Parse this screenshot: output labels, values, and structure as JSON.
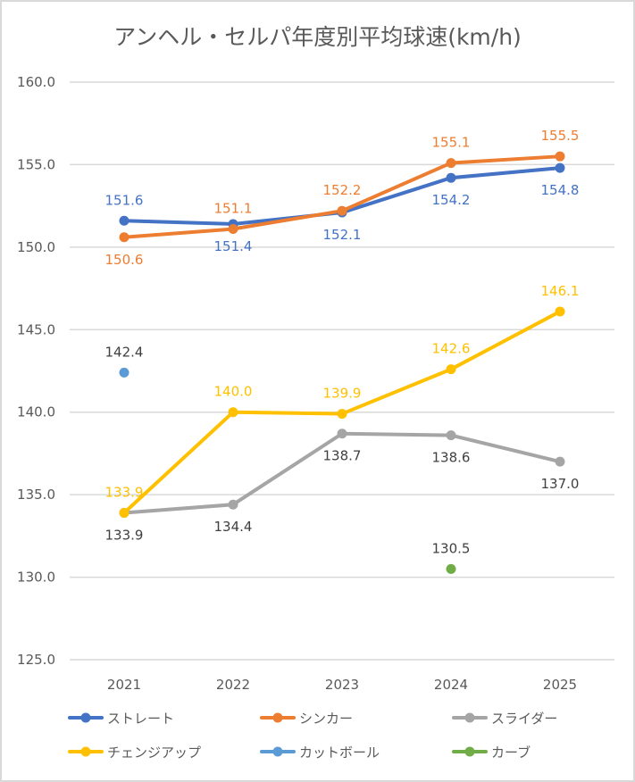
{
  "chart_data": {
    "type": "line",
    "title": "アンヘル・セルパ年度別平均球速(km/h)",
    "xlabel": "",
    "ylabel": "",
    "categories": [
      "2021",
      "2022",
      "2023",
      "2024",
      "2025"
    ],
    "ylim": [
      125.0,
      160.0
    ],
    "yticks": [
      "125.0",
      "130.0",
      "135.0",
      "140.0",
      "145.0",
      "150.0",
      "155.0",
      "160.0"
    ],
    "grid": true,
    "legend_position": "bottom",
    "series": [
      {
        "name": "ストレート",
        "color": "#4472c4",
        "values": [
          151.6,
          151.4,
          152.1,
          154.2,
          154.8
        ],
        "labels": [
          "151.6",
          "151.4",
          "152.1",
          "154.2",
          "154.8"
        ],
        "label_pos": [
          "above",
          "below",
          "below",
          "below",
          "below"
        ]
      },
      {
        "name": "シンカー",
        "color": "#ed7d31",
        "values": [
          150.6,
          151.1,
          152.2,
          155.1,
          155.5
        ],
        "labels": [
          "150.6",
          "151.1",
          "152.2",
          "155.1",
          "155.5"
        ],
        "label_pos": [
          "below",
          "above",
          "above",
          "above",
          "above"
        ]
      },
      {
        "name": "スライダー",
        "color": "#a5a5a5",
        "label_color": "#404040",
        "values": [
          133.9,
          134.4,
          138.7,
          138.6,
          137.0
        ],
        "labels": [
          "133.9",
          "134.4",
          "138.7",
          "138.6",
          "137.0"
        ],
        "label_pos": [
          "below",
          "below",
          "below",
          "below",
          "below"
        ]
      },
      {
        "name": "チェンジアップ",
        "color": "#ffc000",
        "values": [
          133.9,
          140.0,
          139.9,
          142.6,
          146.1
        ],
        "labels": [
          "133.9",
          "140.0",
          "139.9",
          "142.6",
          "146.1"
        ],
        "label_pos": [
          "above",
          "above",
          "above",
          "above",
          "above"
        ]
      },
      {
        "name": "カットボール",
        "color": "#5b9bd5",
        "label_color": "#404040",
        "values": [
          142.4,
          null,
          null,
          null,
          null
        ],
        "labels": [
          "142.4",
          null,
          null,
          null,
          null
        ],
        "label_pos": [
          "above",
          null,
          null,
          null,
          null
        ]
      },
      {
        "name": "カーブ",
        "color": "#70ad47",
        "label_color": "#404040",
        "values": [
          null,
          null,
          null,
          130.5,
          null
        ],
        "labels": [
          null,
          null,
          null,
          "130.5",
          null
        ],
        "label_pos": [
          null,
          null,
          null,
          "above",
          null
        ]
      }
    ]
  }
}
